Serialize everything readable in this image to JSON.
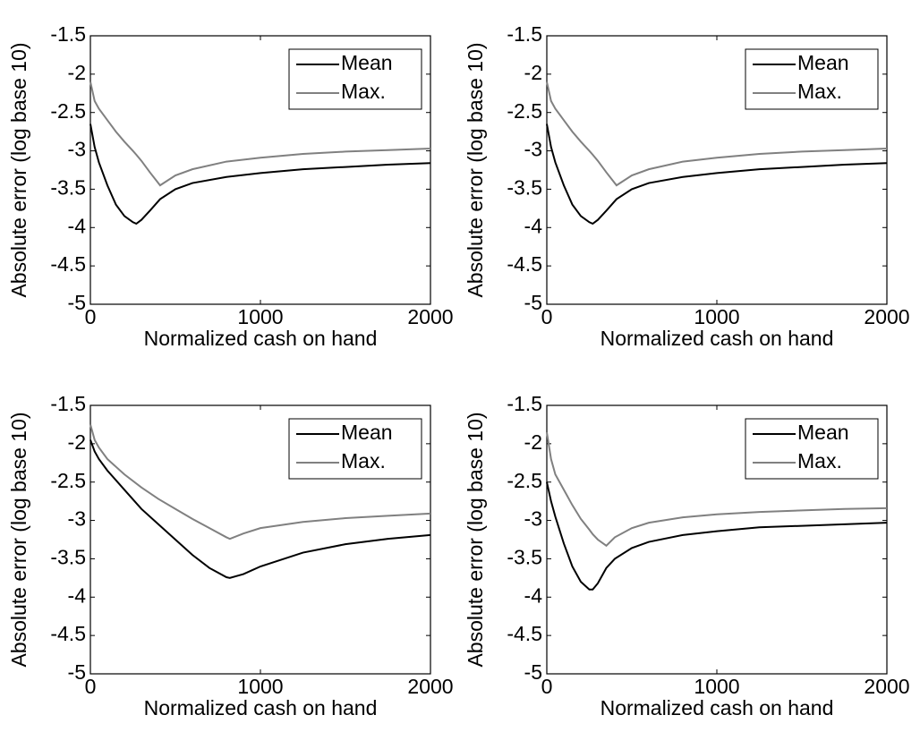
{
  "chart_data": [
    {
      "type": "line",
      "xlabel": "Normalized cash on hand",
      "ylabel": "Absolute error (log base 10)",
      "x": [
        0,
        25,
        50,
        100,
        150,
        200,
        250,
        270,
        300,
        350,
        410,
        500,
        600,
        800,
        1000,
        1250,
        1500,
        1750,
        2000
      ],
      "series": [
        {
          "name": "Mean",
          "color": "#000000",
          "values": [
            -2.65,
            -2.95,
            -3.15,
            -3.45,
            -3.7,
            -3.85,
            -3.93,
            -3.95,
            -3.9,
            -3.78,
            -3.63,
            -3.5,
            -3.42,
            -3.34,
            -3.29,
            -3.24,
            -3.21,
            -3.18,
            -3.16
          ]
        },
        {
          "name": "Max.",
          "color": "#808080",
          "values": [
            -2.1,
            -2.35,
            -2.45,
            -2.6,
            -2.75,
            -2.88,
            -3.0,
            -3.05,
            -3.13,
            -3.28,
            -3.45,
            -3.32,
            -3.24,
            -3.14,
            -3.09,
            -3.04,
            -3.01,
            -2.99,
            -2.97
          ]
        }
      ],
      "xlim": [
        0,
        2000
      ],
      "ylim": [
        -5,
        -1.5
      ],
      "xticks": [
        0,
        1000,
        2000
      ],
      "yticks": [
        -5,
        -4.5,
        -4,
        -3.5,
        -3,
        -2.5,
        -2,
        -1.5
      ],
      "legend": "northeast"
    },
    {
      "type": "line",
      "xlabel": "Normalized cash on hand",
      "ylabel": "Absolute error (log base 10)",
      "x": [
        0,
        25,
        50,
        100,
        150,
        200,
        250,
        270,
        300,
        350,
        410,
        500,
        600,
        800,
        1000,
        1250,
        1500,
        1750,
        2000
      ],
      "series": [
        {
          "name": "Mean",
          "color": "#000000",
          "values": [
            -2.65,
            -2.95,
            -3.15,
            -3.45,
            -3.7,
            -3.85,
            -3.93,
            -3.95,
            -3.9,
            -3.78,
            -3.63,
            -3.5,
            -3.42,
            -3.34,
            -3.29,
            -3.24,
            -3.21,
            -3.18,
            -3.16
          ]
        },
        {
          "name": "Max.",
          "color": "#808080",
          "values": [
            -2.1,
            -2.35,
            -2.45,
            -2.6,
            -2.75,
            -2.88,
            -3.0,
            -3.05,
            -3.13,
            -3.28,
            -3.45,
            -3.32,
            -3.24,
            -3.14,
            -3.09,
            -3.04,
            -3.01,
            -2.99,
            -2.97
          ]
        }
      ],
      "xlim": [
        0,
        2000
      ],
      "ylim": [
        -5,
        -1.5
      ],
      "xticks": [
        0,
        1000,
        2000
      ],
      "yticks": [
        -5,
        -4.5,
        -4,
        -3.5,
        -3,
        -2.5,
        -2,
        -1.5
      ],
      "legend": "northeast"
    },
    {
      "type": "line",
      "xlabel": "Normalized cash on hand",
      "ylabel": "Absolute error (log base 10)",
      "x": [
        0,
        25,
        50,
        100,
        200,
        300,
        400,
        500,
        600,
        700,
        800,
        820,
        900,
        1000,
        1250,
        1500,
        1750,
        2000
      ],
      "series": [
        {
          "name": "Mean",
          "color": "#000000",
          "values": [
            -1.95,
            -2.1,
            -2.2,
            -2.35,
            -2.6,
            -2.85,
            -3.05,
            -3.25,
            -3.45,
            -3.62,
            -3.74,
            -3.75,
            -3.7,
            -3.6,
            -3.42,
            -3.31,
            -3.24,
            -3.19
          ]
        },
        {
          "name": "Max.",
          "color": "#808080",
          "values": [
            -1.75,
            -1.95,
            -2.05,
            -2.2,
            -2.4,
            -2.57,
            -2.72,
            -2.85,
            -2.98,
            -3.1,
            -3.22,
            -3.24,
            -3.17,
            -3.1,
            -3.02,
            -2.97,
            -2.94,
            -2.91
          ]
        }
      ],
      "xlim": [
        0,
        2000
      ],
      "ylim": [
        -5,
        -1.5
      ],
      "xticks": [
        0,
        1000,
        2000
      ],
      "yticks": [
        -5,
        -4.5,
        -4,
        -3.5,
        -3,
        -2.5,
        -2,
        -1.5
      ],
      "legend": "northeast"
    },
    {
      "type": "line",
      "xlabel": "Normalized cash on hand",
      "ylabel": "Absolute error (log base 10)",
      "x": [
        0,
        25,
        50,
        100,
        150,
        200,
        250,
        270,
        300,
        350,
        400,
        500,
        600,
        800,
        1000,
        1250,
        1500,
        1750,
        2000
      ],
      "series": [
        {
          "name": "Mean",
          "color": "#000000",
          "values": [
            -2.5,
            -2.75,
            -2.95,
            -3.3,
            -3.6,
            -3.8,
            -3.9,
            -3.9,
            -3.82,
            -3.62,
            -3.5,
            -3.36,
            -3.28,
            -3.19,
            -3.14,
            -3.09,
            -3.07,
            -3.05,
            -3.03
          ]
        },
        {
          "name": "Max.",
          "color": "#808080",
          "values": [
            -1.85,
            -2.2,
            -2.4,
            -2.6,
            -2.8,
            -2.98,
            -3.12,
            -3.18,
            -3.25,
            -3.33,
            -3.22,
            -3.1,
            -3.03,
            -2.96,
            -2.92,
            -2.89,
            -2.87,
            -2.85,
            -2.84
          ]
        }
      ],
      "xlim": [
        0,
        2000
      ],
      "ylim": [
        -5,
        -1.5
      ],
      "xticks": [
        0,
        1000,
        2000
      ],
      "yticks": [
        -5,
        -4.5,
        -4,
        -3.5,
        -3,
        -2.5,
        -2,
        -1.5
      ],
      "legend": "northeast"
    }
  ]
}
